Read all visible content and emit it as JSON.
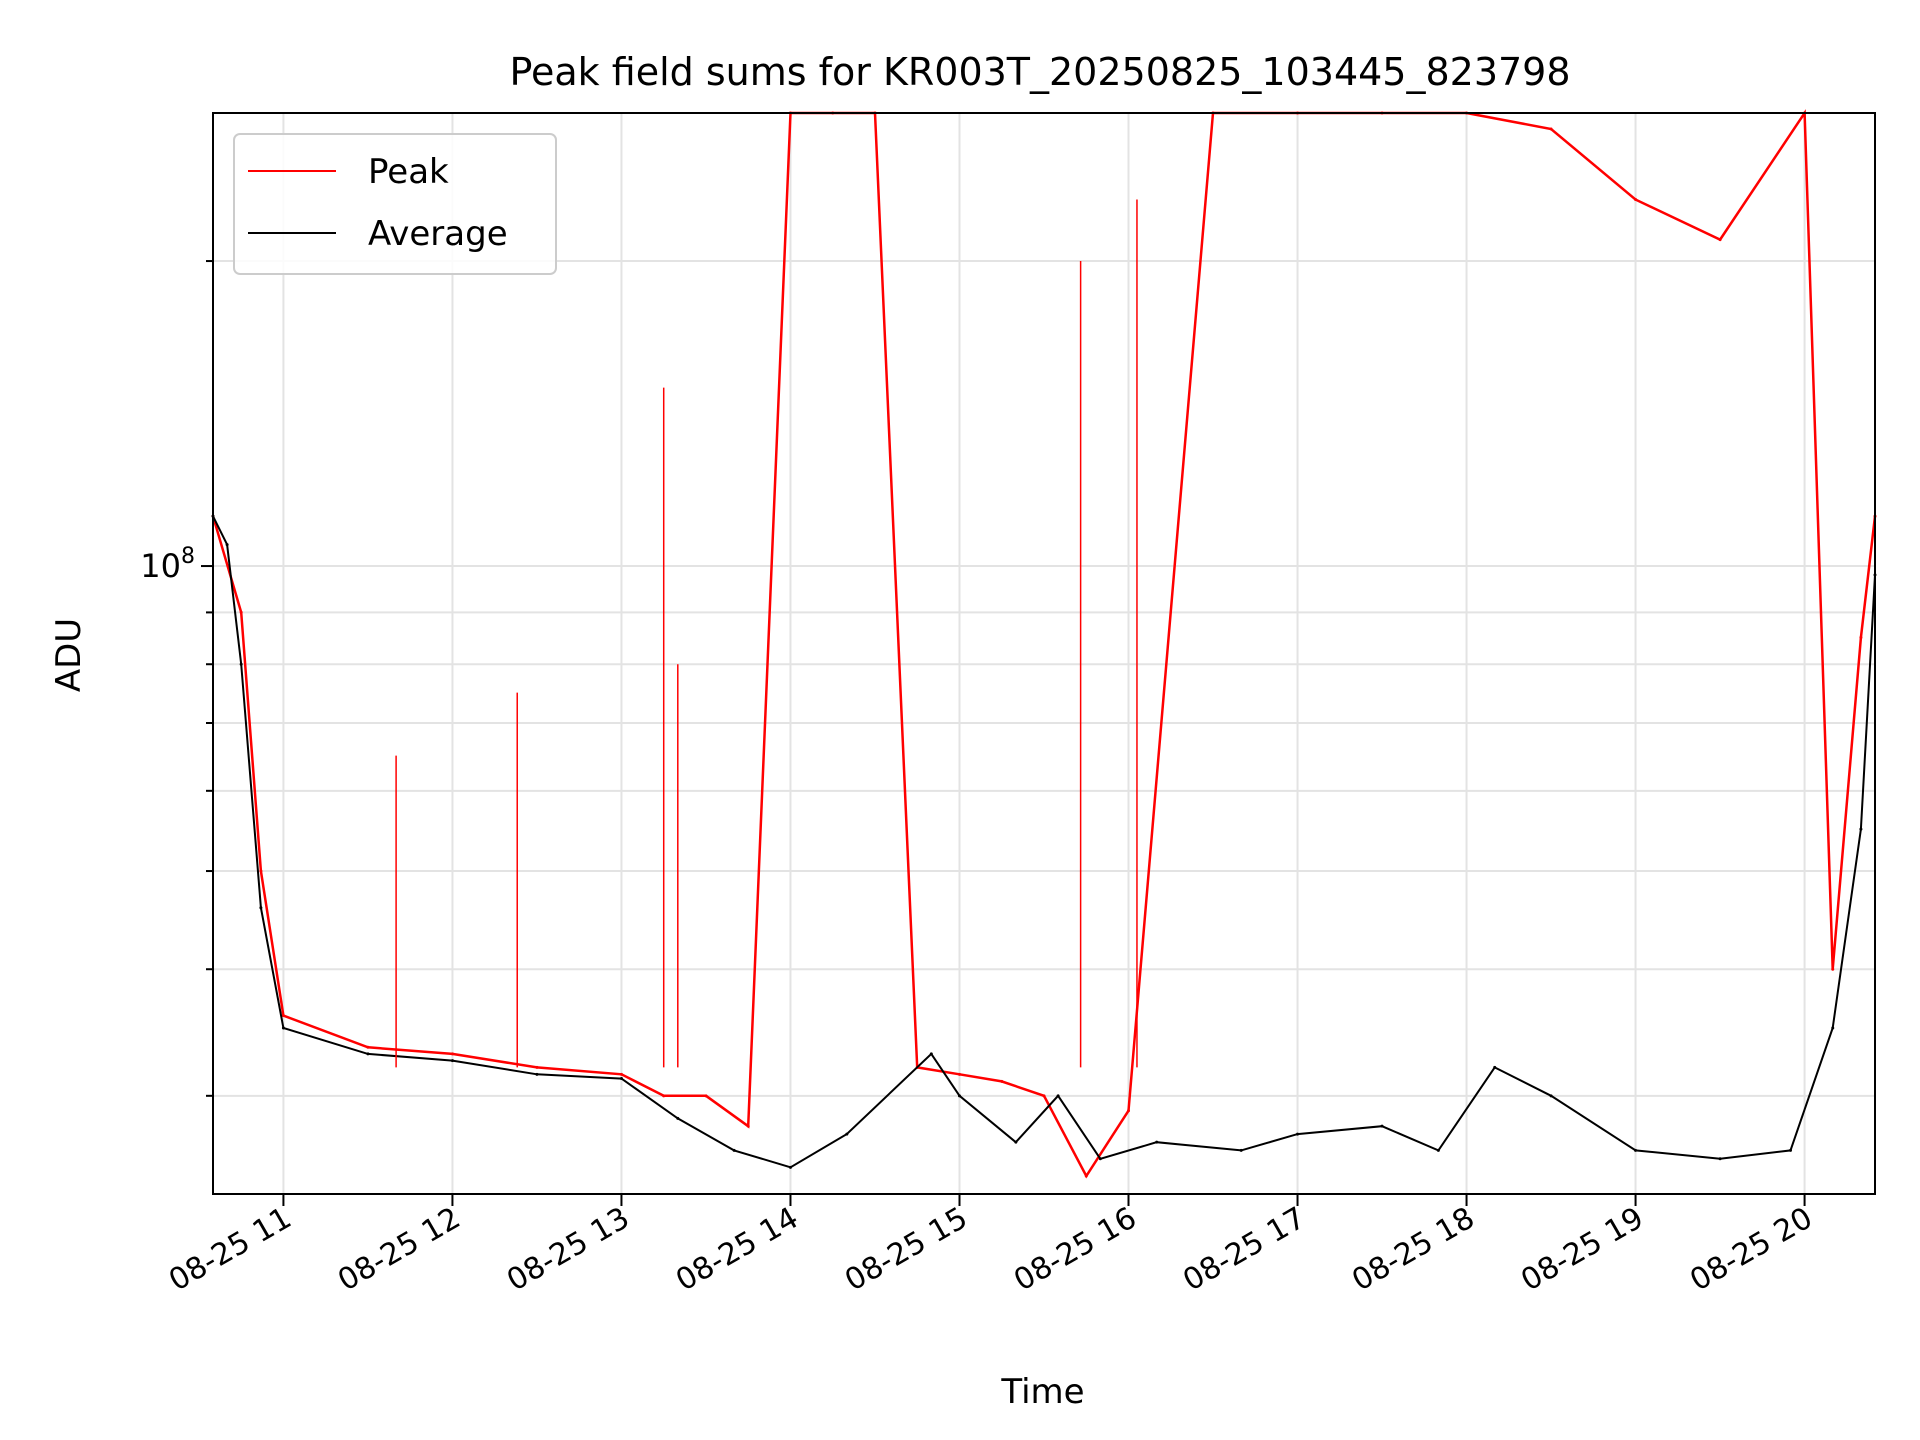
{
  "chart_data": {
    "type": "line",
    "title": "Peak field sums for KR003T_20250825_103445_823798",
    "xlabel": "Time",
    "ylabel": "ADU",
    "x_axis_type": "date",
    "xlim": [
      "2025-08-25 10:35",
      "2025-08-25 20:25"
    ],
    "x_ticks": [
      "2025-08-25 11:00",
      "2025-08-25 12:00",
      "2025-08-25 13:00",
      "2025-08-25 14:00",
      "2025-08-25 15:00",
      "2025-08-25 16:00",
      "2025-08-25 17:00",
      "2025-08-25 18:00",
      "2025-08-25 19:00",
      "2025-08-25 20:00"
    ],
    "x_tick_labels": [
      "08-25 11",
      "08-25 12",
      "08-25 13",
      "08-25 14",
      "08-25 15",
      "08-25 16",
      "08-25 17",
      "08-25 18",
      "08-25 19",
      "08-25 20"
    ],
    "y_scale": "log",
    "ylim": [
      24000000,
      280000000
    ],
    "y_major_ticks": [
      100000000
    ],
    "y_major_tick_labels": [
      "10^8"
    ],
    "y_minor_ticks": [
      30000000,
      40000000,
      50000000,
      60000000,
      70000000,
      80000000,
      90000000,
      200000000
    ],
    "grid": true,
    "legend_position": "top-left",
    "series": [
      {
        "name": "Peak",
        "color": "#ff0000",
        "line_style": "dense spiky trace",
        "x": [
          "2025-08-25 10:35",
          "2025-08-25 10:45",
          "2025-08-25 10:52",
          "2025-08-25 11:00",
          "2025-08-25 11:30",
          "2025-08-25 12:00",
          "2025-08-25 12:30",
          "2025-08-25 13:00",
          "2025-08-25 13:15",
          "2025-08-25 13:30",
          "2025-08-25 13:45",
          "2025-08-25 14:00",
          "2025-08-25 14:15",
          "2025-08-25 14:30",
          "2025-08-25 14:45",
          "2025-08-25 15:00",
          "2025-08-25 15:15",
          "2025-08-25 15:30",
          "2025-08-25 15:45",
          "2025-08-25 16:00",
          "2025-08-25 16:30",
          "2025-08-25 17:00",
          "2025-08-25 17:30",
          "2025-08-25 18:00",
          "2025-08-25 18:30",
          "2025-08-25 19:00",
          "2025-08-25 19:30",
          "2025-08-25 20:00",
          "2025-08-25 20:10",
          "2025-08-25 20:20",
          "2025-08-25 20:25"
        ],
        "values": [
          112000000,
          90000000,
          50000000,
          36000000,
          33500000,
          33000000,
          32000000,
          31500000,
          30000000,
          30000000,
          28000000,
          300000000,
          300000000,
          300000000,
          32000000,
          31500000,
          31000000,
          30000000,
          25000000,
          29000000,
          300000000,
          300000000,
          300000000,
          300000000,
          270000000,
          230000000,
          210000000,
          290000000,
          40000000,
          85000000,
          112000000
        ],
        "notes_on_spikes": [
          {
            "x": "2025-08-25 11:40",
            "value": 65000000
          },
          {
            "x": "2025-08-25 12:23",
            "value": 75000000
          },
          {
            "x": "2025-08-25 13:15",
            "value": 150000000
          },
          {
            "x": "2025-08-25 13:20",
            "value": 80000000
          },
          {
            "x": "2025-08-25 15:43",
            "value": 200000000
          },
          {
            "x": "2025-08-25 16:03",
            "value": 230000000
          }
        ]
      },
      {
        "name": "Average",
        "color": "#000000",
        "line_style": "thin trace",
        "x": [
          "2025-08-25 10:35",
          "2025-08-25 10:40",
          "2025-08-25 10:45",
          "2025-08-25 10:52",
          "2025-08-25 11:00",
          "2025-08-25 11:30",
          "2025-08-25 12:00",
          "2025-08-25 12:30",
          "2025-08-25 13:00",
          "2025-08-25 13:20",
          "2025-08-25 13:40",
          "2025-08-25 14:00",
          "2025-08-25 14:20",
          "2025-08-25 14:50",
          "2025-08-25 15:00",
          "2025-08-25 15:20",
          "2025-08-25 15:35",
          "2025-08-25 15:50",
          "2025-08-25 16:10",
          "2025-08-25 16:40",
          "2025-08-25 17:00",
          "2025-08-25 17:30",
          "2025-08-25 17:50",
          "2025-08-25 18:10",
          "2025-08-25 18:30",
          "2025-08-25 19:00",
          "2025-08-25 19:30",
          "2025-08-25 19:55",
          "2025-08-25 20:10",
          "2025-08-25 20:20",
          "2025-08-25 20:25"
        ],
        "values": [
          112000000,
          105000000,
          80000000,
          46000000,
          35000000,
          33000000,
          32500000,
          31500000,
          31200000,
          28500000,
          26500000,
          25500000,
          27500000,
          33000000,
          30000000,
          27000000,
          30000000,
          26000000,
          27000000,
          26500000,
          27500000,
          28000000,
          26500000,
          32000000,
          30000000,
          26500000,
          26000000,
          26500000,
          35000000,
          55000000,
          98000000
        ]
      }
    ],
    "legend": [
      {
        "label": "Peak",
        "color": "#ff0000"
      },
      {
        "label": "Average",
        "color": "#000000"
      }
    ]
  }
}
